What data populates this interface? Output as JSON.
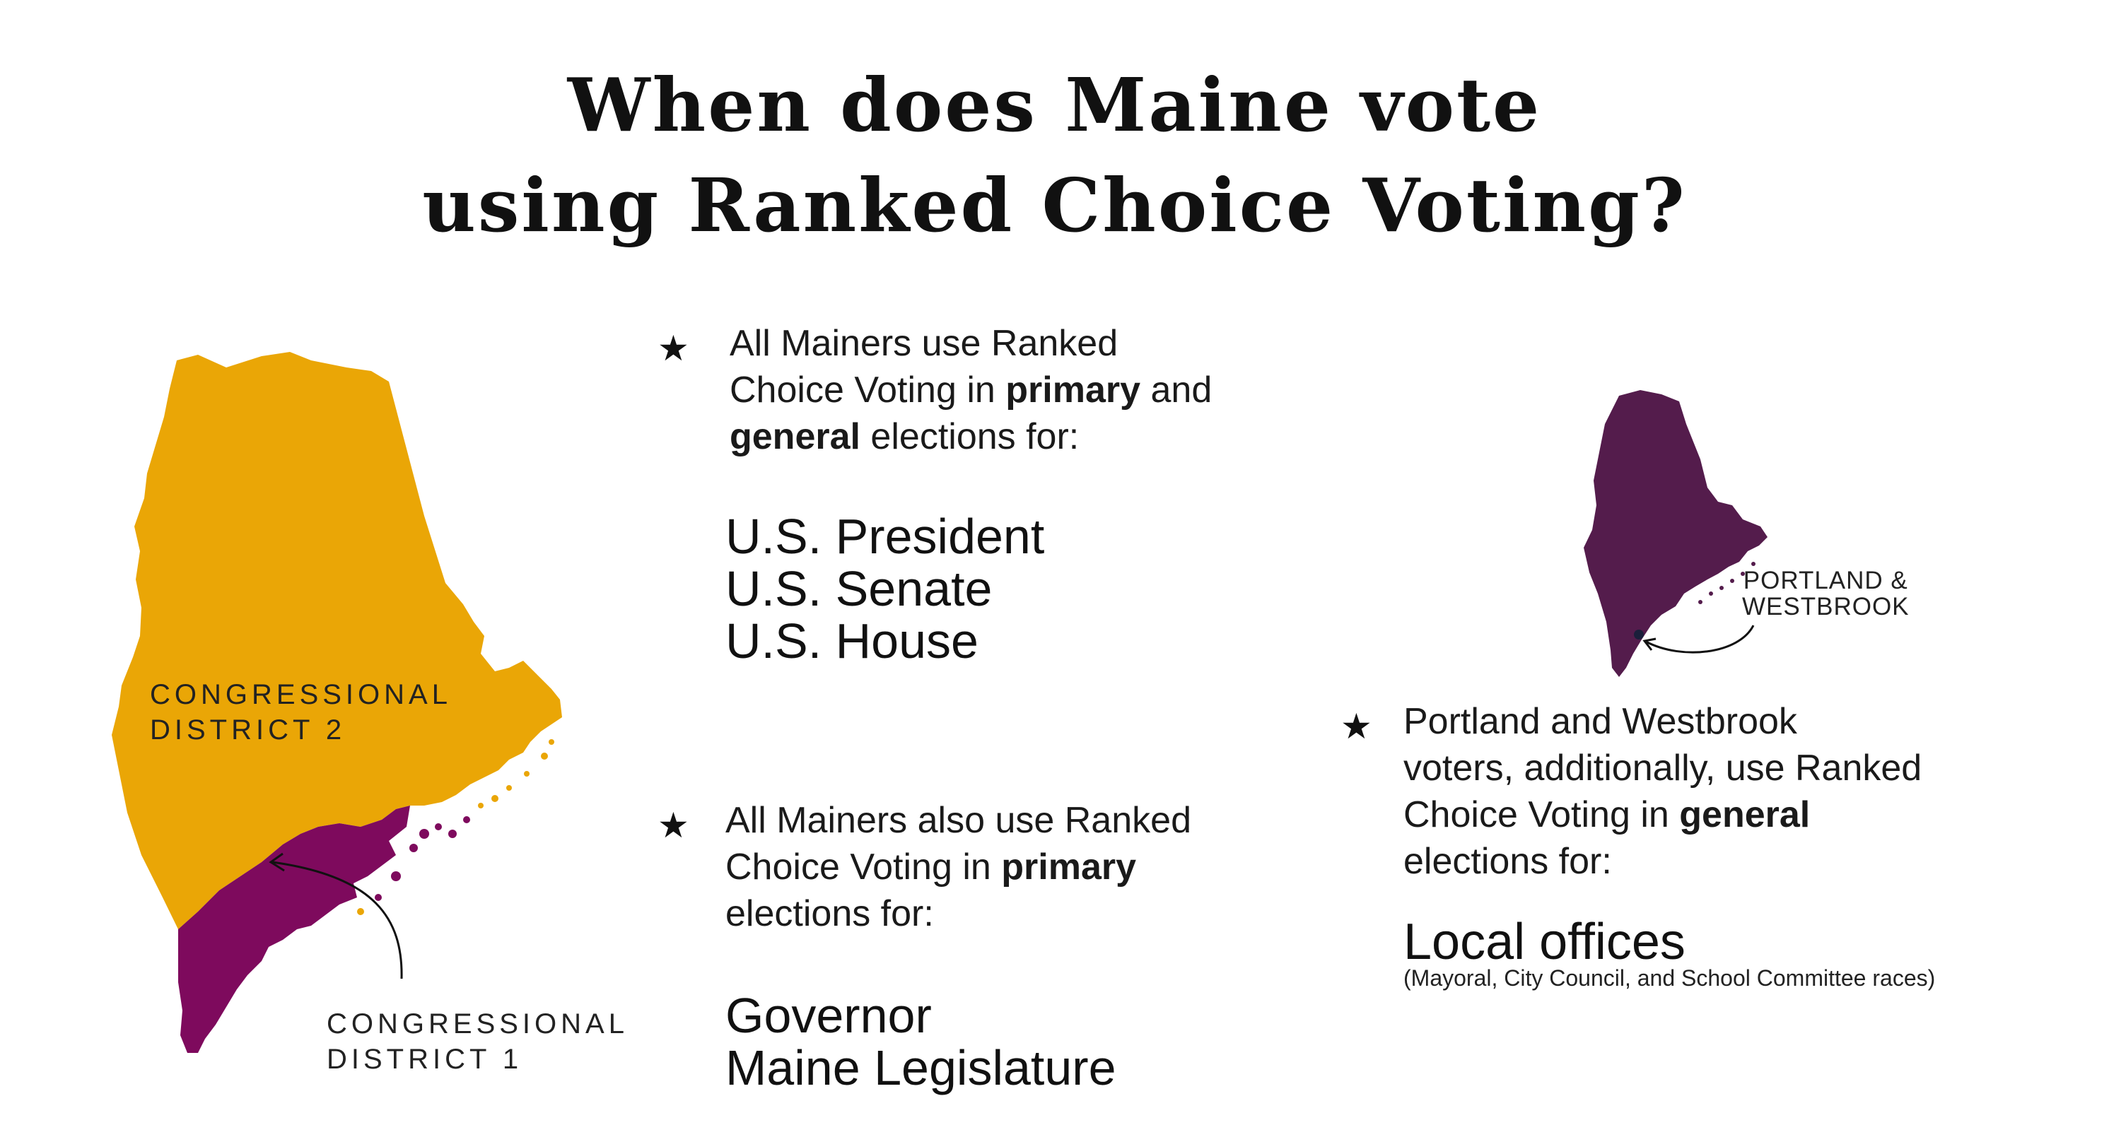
{
  "title": {
    "line1": "When does Maine vote",
    "line2": "using Ranked Choice Voting?"
  },
  "map_left": {
    "district2_label": [
      "CONGRESSIONAL",
      "DISTRICT 2"
    ],
    "district1_label": [
      "CONGRESSIONAL",
      "DISTRICT 1"
    ],
    "district2_color": "#EAA606",
    "district1_color": "#7E0A5D"
  },
  "section1": {
    "icon": "star-icon",
    "lines": [
      {
        "pre": "All Mainers use Ranked",
        "bold": "",
        "post": ""
      },
      {
        "pre": "Choice Voting in ",
        "bold": "primary",
        "post": " and"
      },
      {
        "pre": "",
        "bold": "general",
        "post": " elections for:"
      }
    ],
    "offices": [
      "U.S. President",
      "U.S. Senate",
      "U.S. House"
    ]
  },
  "section2": {
    "icon": "star-icon",
    "lines": [
      {
        "pre": "All Mainers also use Ranked",
        "bold": "",
        "post": ""
      },
      {
        "pre": "Choice Voting in ",
        "bold": "primary",
        "post": ""
      },
      {
        "pre": "elections for:",
        "bold": "",
        "post": ""
      }
    ],
    "offices": [
      "Governor",
      "Maine Legislature"
    ]
  },
  "map_right": {
    "label": [
      "PORTLAND &",
      "WESTBROOK"
    ],
    "color": "#541C4C"
  },
  "section3": {
    "icon": "star-icon",
    "lines": [
      {
        "pre": "Portland and Westbrook",
        "bold": "",
        "post": ""
      },
      {
        "pre": "voters, additionally, use Ranked",
        "bold": "",
        "post": ""
      },
      {
        "pre": "Choice Voting in ",
        "bold": "general",
        "post": ""
      },
      {
        "pre": "elections for:",
        "bold": "",
        "post": ""
      }
    ],
    "office_title": "Local offices",
    "office_subtitle": "(Mayoral, City Council, and School Committee races)"
  }
}
